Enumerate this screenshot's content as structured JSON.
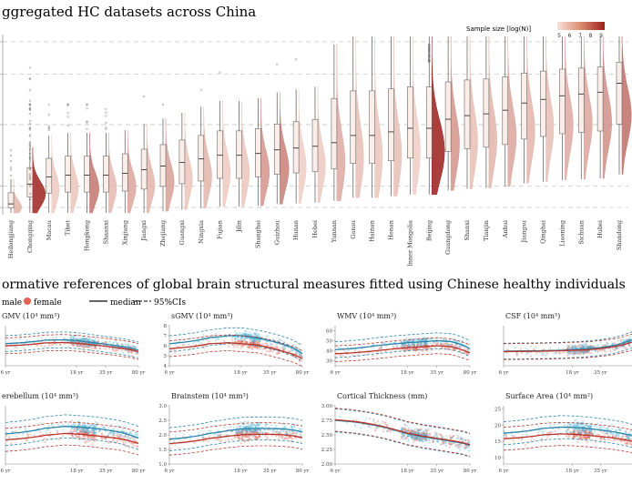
{
  "figure": {
    "title_a": "ggregated HC datasets across China",
    "title_b": "ormative references of global brain structural measures fitted using Chinese healthy individuals"
  },
  "colors": {
    "male": "#4bb3d3",
    "female": "#e06455",
    "median": "#333333",
    "legend_light": "#f3d3c8",
    "legend_dark": "#9b1f1b",
    "grid": "#bdbdbd"
  },
  "legend_top": {
    "title": "Sample size [log(N)]",
    "ticks": [
      "5",
      "6",
      "7",
      "8",
      "9"
    ]
  },
  "legend_bottom": {
    "male": "male",
    "female": "female",
    "median": "median",
    "ci": "95%CIs"
  },
  "chart_data": [
    {
      "type": "violin-box",
      "title": "ggregated HC datasets across China",
      "categories": [
        "Heilongjiang",
        "Chongqing",
        "Macau",
        "Tibet",
        "Hongkong",
        "Shaanxi",
        "Xinjiang",
        "Jiangxi",
        "Zhejiang",
        "Guangxi",
        "Ningxia",
        "Fujian",
        "Jilin",
        "Shanghai",
        "Guizhou",
        "Hunan",
        "Hebei",
        "Yunnan",
        "Gansu",
        "Hainan",
        "Henan",
        "Inner Mongolia",
        "Beijing",
        "Guangdong",
        "Shanxi",
        "Tianjin",
        "Anhui",
        "Jiangsu",
        "Qinghai",
        "Liaoning",
        "Sichuan",
        "Hubei",
        "Shandong"
      ],
      "median_rank": [
        0.06,
        0.17,
        0.21,
        0.22,
        0.22,
        0.22,
        0.23,
        0.25,
        0.27,
        0.29,
        0.31,
        0.33,
        0.33,
        0.34,
        0.36,
        0.37,
        0.38,
        0.4,
        0.44,
        0.44,
        0.46,
        0.48,
        0.48,
        0.53,
        0.55,
        0.56,
        0.58,
        0.62,
        0.64,
        0.66,
        0.67,
        0.68,
        0.73
      ],
      "sample_size_log": [
        6.2,
        8.9,
        5.8,
        5.9,
        7.4,
        6.1,
        6.5,
        6.2,
        6.6,
        5.9,
        6.2,
        5.8,
        5.9,
        6.8,
        7.2,
        5.7,
        5.8,
        6.4,
        6.0,
        5.9,
        6.0,
        5.7,
        9.0,
        6.8,
        6.0,
        6.2,
        6.5,
        6.2,
        6.0,
        6.4,
        6.5,
        6.9,
        7.5
      ],
      "legend": "Sample size [log(N)]"
    },
    {
      "type": "line",
      "title": "GMV (10⁴ mm³)",
      "x_ticks": [
        "6 yr",
        "18 yr",
        "35 yr",
        "80 yr"
      ],
      "y_ticks": [],
      "series": [
        {
          "name": "male",
          "x": [
            6,
            10,
            14,
            18,
            25,
            35,
            50,
            65,
            80
          ],
          "values": [
            5.8,
            6.7,
            6.8,
            6.6,
            6.1,
            5.6,
            5.1,
            4.6,
            4.1
          ]
        },
        {
          "name": "female",
          "x": [
            6,
            10,
            14,
            18,
            25,
            35,
            50,
            65,
            80
          ],
          "values": [
            5.2,
            6.0,
            6.1,
            5.9,
            5.5,
            5.1,
            4.6,
            4.2,
            3.7
          ]
        }
      ]
    },
    {
      "type": "line",
      "title": "sGMV (10⁴ mm³)",
      "x_ticks": [
        "6 yr",
        "18 yr",
        "35 yr",
        "80 yr"
      ],
      "y_ticks": [
        "4",
        "5",
        "6",
        "7",
        "8"
      ],
      "ylim": [
        4,
        8
      ],
      "series": [
        {
          "name": "male",
          "x": [
            6,
            10,
            14,
            18,
            25,
            35,
            50,
            65,
            80
          ],
          "values": [
            6.2,
            6.8,
            7.0,
            7.0,
            6.8,
            6.5,
            6.1,
            5.7,
            5.2
          ]
        },
        {
          "name": "female",
          "x": [
            6,
            10,
            14,
            18,
            25,
            35,
            50,
            65,
            80
          ],
          "values": [
            5.7,
            6.2,
            6.3,
            6.2,
            6.1,
            5.8,
            5.4,
            5.1,
            4.7
          ]
        }
      ]
    },
    {
      "type": "line",
      "title": "WMV (10⁴ mm³)",
      "x_ticks": [
        "6 yr",
        "18 yr",
        "35 yr",
        "80 yr"
      ],
      "y_ticks": [
        "30",
        "40",
        "50",
        "60"
      ],
      "ylim": [
        25,
        65
      ],
      "series": [
        {
          "name": "male",
          "x": [
            6,
            10,
            14,
            18,
            25,
            35,
            50,
            65,
            80
          ],
          "values": [
            41,
            45,
            47,
            48,
            49,
            50,
            49,
            46,
            42
          ]
        },
        {
          "name": "female",
          "x": [
            6,
            10,
            14,
            18,
            25,
            35,
            50,
            65,
            80
          ],
          "values": [
            37,
            40,
            42,
            43,
            44,
            45,
            44,
            41,
            38
          ]
        }
      ]
    },
    {
      "type": "line",
      "title": "CSF (10⁴ mm³)",
      "x_ticks": [
        "6 yr",
        "18 yr",
        "35 yr"
      ],
      "y_ticks": [],
      "series": [
        {
          "name": "male",
          "x": [
            6,
            10,
            14,
            18,
            25,
            35,
            50,
            65,
            80
          ],
          "values": [
            1.0,
            1.1,
            1.2,
            1.3,
            1.5,
            1.8,
            2.3,
            2.9,
            3.5
          ]
        },
        {
          "name": "female",
          "x": [
            6,
            10,
            14,
            18,
            25,
            35,
            50,
            65,
            80
          ],
          "values": [
            0.9,
            1.0,
            1.1,
            1.2,
            1.3,
            1.6,
            2.0,
            2.5,
            3.0
          ]
        }
      ]
    },
    {
      "type": "line",
      "title": "erebellum (10⁴ mm³)",
      "x_ticks": [
        "6 yr",
        "18 yr",
        "35 yr",
        "80 yr"
      ],
      "y_ticks": [],
      "series": [
        {
          "name": "male",
          "x": [
            6,
            10,
            14,
            18,
            25,
            35,
            50,
            65,
            80
          ],
          "values": [
            1.45,
            1.55,
            1.58,
            1.57,
            1.55,
            1.52,
            1.48,
            1.43,
            1.38
          ]
        },
        {
          "name": "female",
          "x": [
            6,
            10,
            14,
            18,
            25,
            35,
            50,
            65,
            80
          ],
          "values": [
            1.35,
            1.43,
            1.46,
            1.45,
            1.43,
            1.4,
            1.37,
            1.33,
            1.29
          ]
        }
      ]
    },
    {
      "type": "line",
      "title": "Brainstem (10⁴ mm³)",
      "x_ticks": [
        "6 yr",
        "18 yr",
        "35 yr",
        "80 yr"
      ],
      "y_ticks": [
        "1.0",
        "1.5",
        "2.0",
        "2.5",
        "3.0"
      ],
      "ylim": [
        1.0,
        3.0
      ],
      "series": [
        {
          "name": "male",
          "x": [
            6,
            10,
            14,
            18,
            25,
            35,
            50,
            65,
            80
          ],
          "values": [
            1.85,
            2.05,
            2.15,
            2.2,
            2.22,
            2.22,
            2.2,
            2.16,
            2.1
          ]
        },
        {
          "name": "female",
          "x": [
            6,
            10,
            14,
            18,
            25,
            35,
            50,
            65,
            80
          ],
          "values": [
            1.7,
            1.88,
            1.96,
            2.0,
            2.02,
            2.02,
            2.0,
            1.96,
            1.9
          ]
        }
      ]
    },
    {
      "type": "line",
      "title": "Cortical Thickness (mm)",
      "x_ticks": [
        "6 yr",
        "18 yr",
        "35 yr",
        "80 yr"
      ],
      "y_ticks": [
        "2.00",
        "2.25",
        "2.50",
        "2.75",
        "3.00"
      ],
      "ylim": [
        2.0,
        3.0
      ],
      "series": [
        {
          "name": "male",
          "x": [
            6,
            10,
            14,
            18,
            25,
            35,
            50,
            65,
            80
          ],
          "values": [
            2.75,
            2.66,
            2.58,
            2.52,
            2.47,
            2.43,
            2.39,
            2.36,
            2.32
          ]
        },
        {
          "name": "female",
          "x": [
            6,
            10,
            14,
            18,
            25,
            35,
            50,
            65,
            80
          ],
          "values": [
            2.76,
            2.67,
            2.59,
            2.53,
            2.48,
            2.44,
            2.4,
            2.37,
            2.33
          ]
        }
      ]
    },
    {
      "type": "line",
      "title": "Surface Area (10⁴ mm²)",
      "x_ticks": [
        "6 yr",
        "18 yr",
        "35 yr"
      ],
      "y_ticks": [
        "10",
        "15",
        "20",
        "25"
      ],
      "ylim": [
        8,
        26
      ],
      "series": [
        {
          "name": "male",
          "x": [
            6,
            10,
            14,
            18,
            25,
            35,
            50,
            65,
            80
          ],
          "values": [
            17.5,
            19.0,
            19.4,
            19.3,
            19.0,
            18.5,
            17.9,
            17.3,
            16.7
          ]
        },
        {
          "name": "female",
          "x": [
            6,
            10,
            14,
            18,
            25,
            35,
            50,
            65,
            80
          ],
          "values": [
            15.8,
            17.0,
            17.3,
            17.2,
            16.9,
            16.5,
            16.0,
            15.5,
            15.0
          ]
        }
      ]
    }
  ]
}
